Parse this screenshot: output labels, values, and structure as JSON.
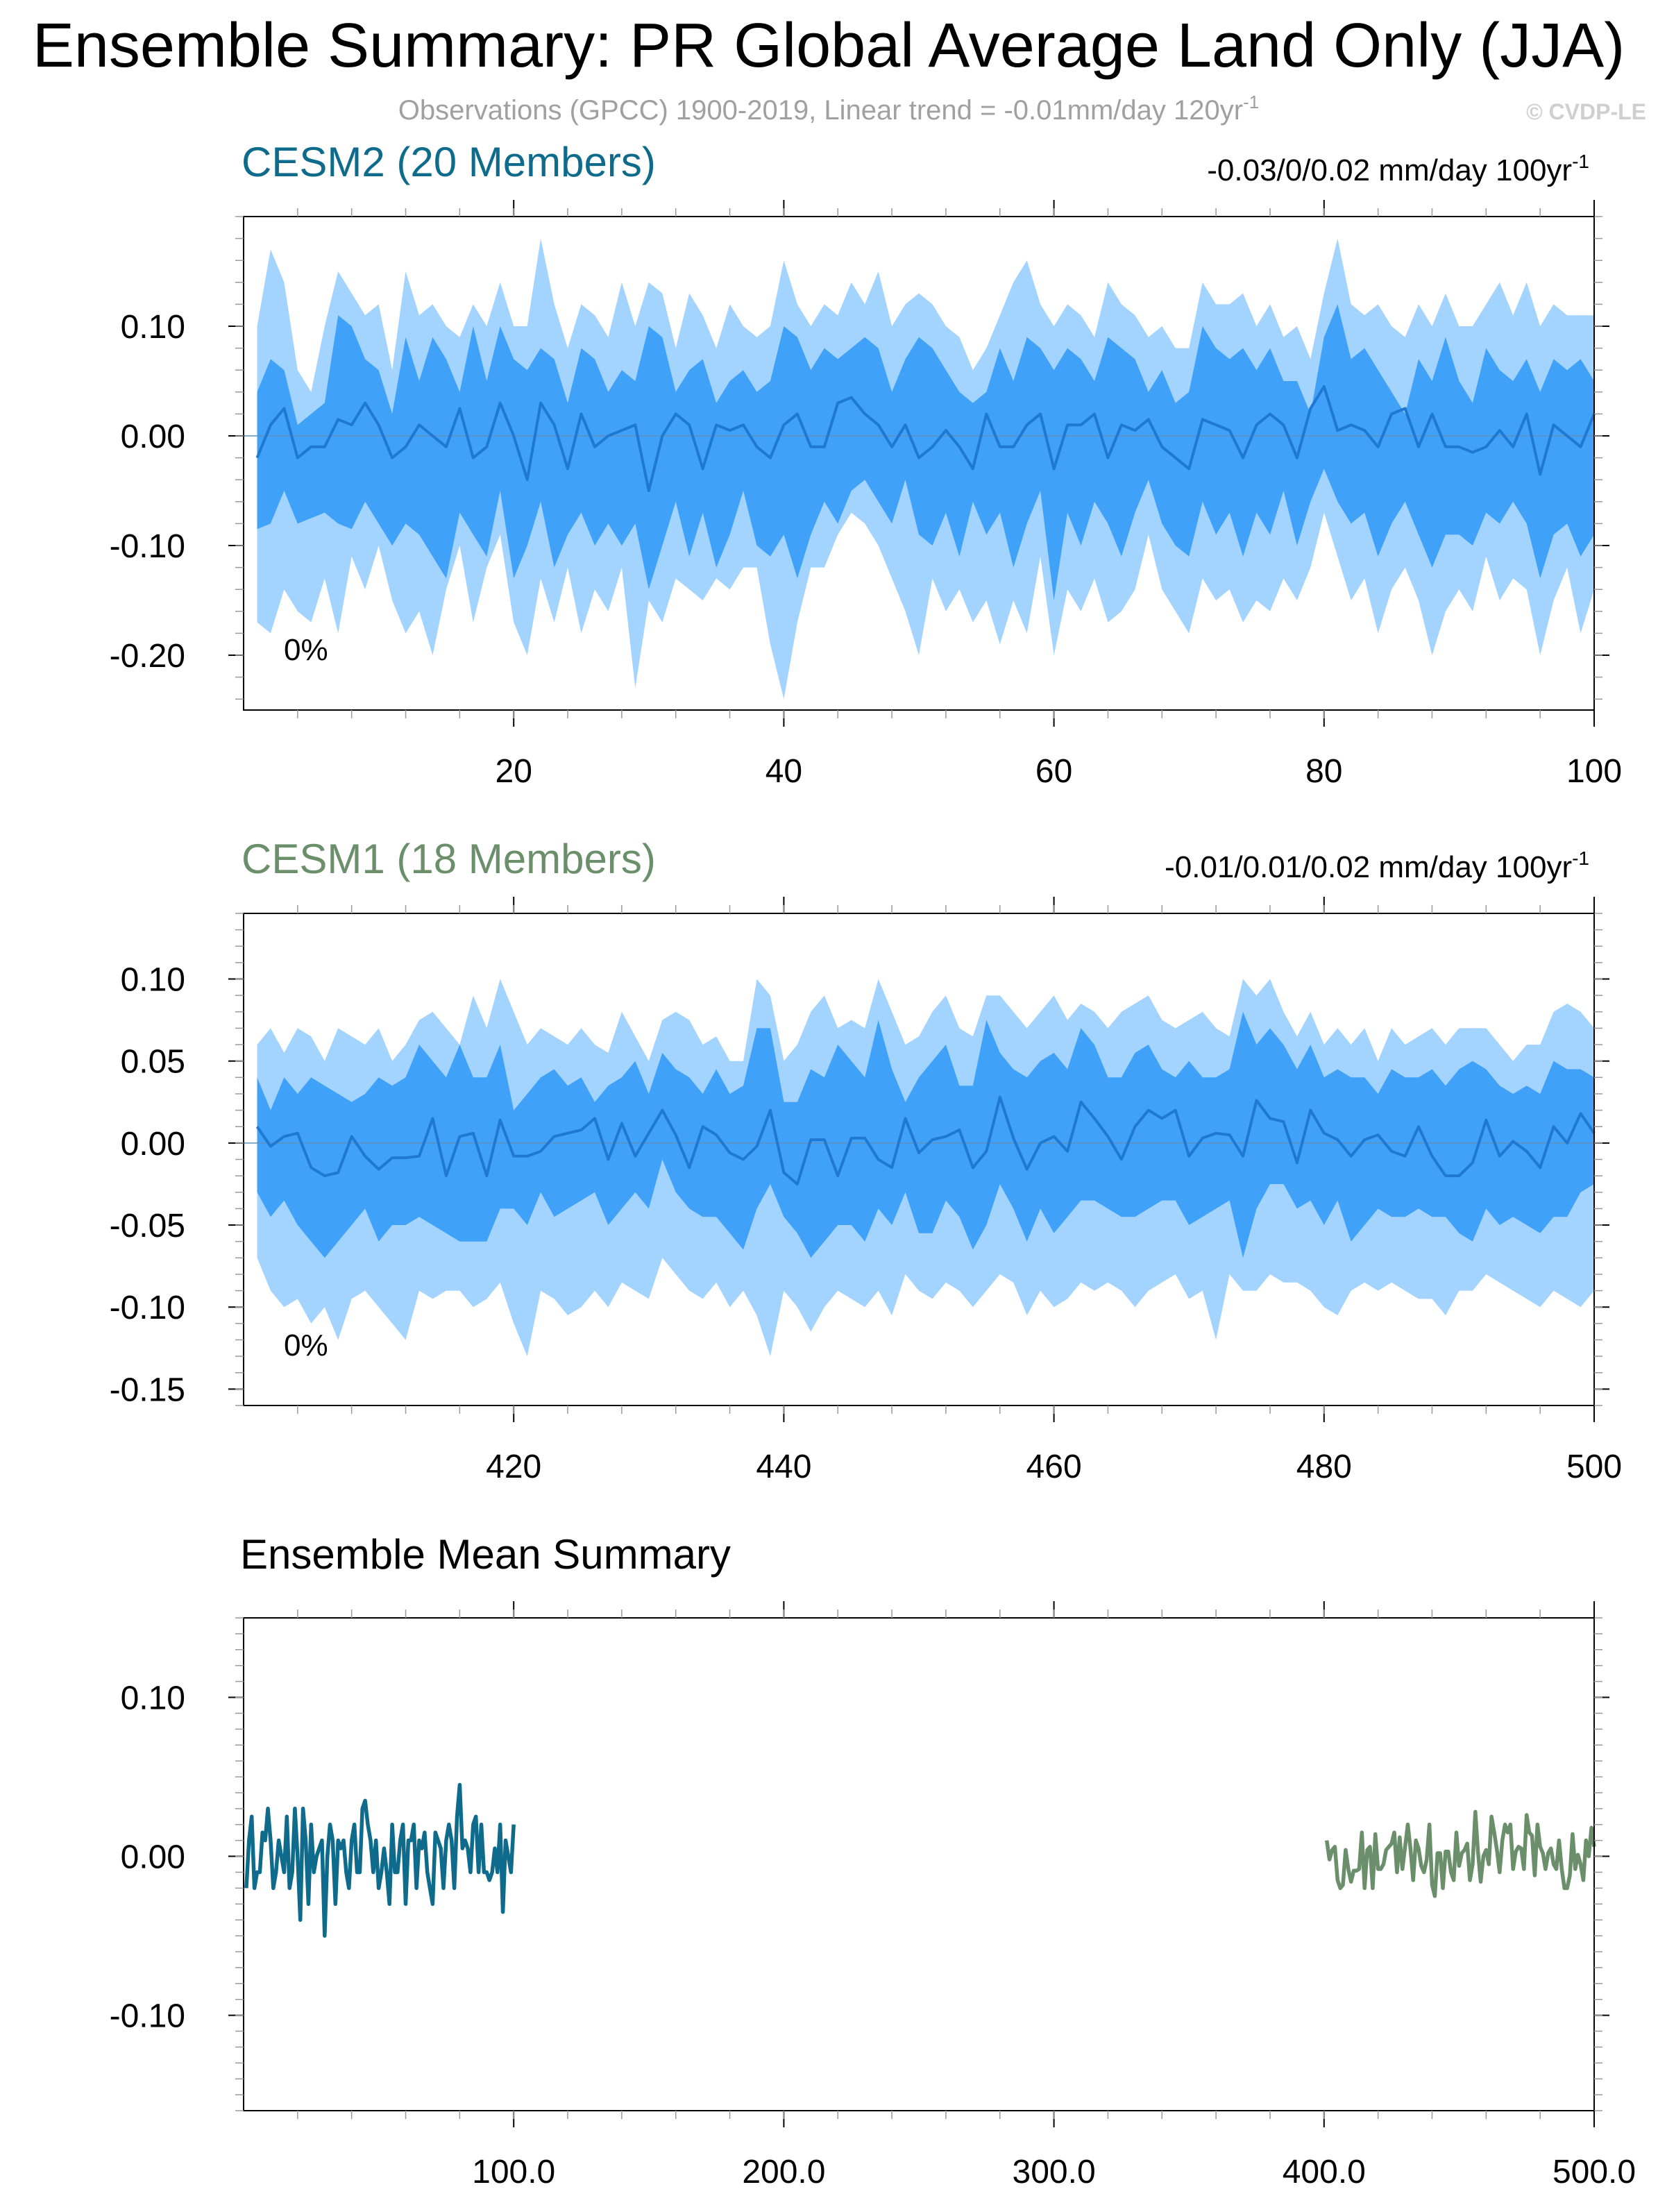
{
  "header": {
    "title": "Ensemble Summary: PR Global Average Land Only (JJA)",
    "subtitle": "Observations (GPCC) 1900-2019, Linear trend = -0.01mm/day 120yr",
    "subtitle_sup": "-1",
    "copyright": "© CVDP-LE"
  },
  "colors": {
    "cesm2": "#0e6b8c",
    "cesm1": "#6a8f6a",
    "band_outer": "#a3d3ff",
    "band_inner": "#3fa1f7",
    "mean_line": "#1f78d1",
    "axis": "#000000",
    "subtitle": "#a0a0a0"
  },
  "chart_data": [
    {
      "type": "area",
      "id": "cesm2",
      "title": "CESM2 (20 Members)",
      "trend_label": "-0.03/0/0.02 mm/day 100yr",
      "trend_sup": "-1",
      "percent_label": "0%",
      "xlim": [
        0,
        100
      ],
      "ylim": [
        -0.25,
        0.2
      ],
      "x_ticks": [
        20,
        40,
        60,
        80,
        100
      ],
      "y_ticks": [
        0.1,
        0.0,
        -0.1,
        -0.2
      ],
      "y_tick_labels": [
        "0.10",
        "0.00",
        "-0.10",
        "-0.20"
      ],
      "x": [
        1,
        2,
        3,
        4,
        5,
        6,
        7,
        8,
        9,
        10,
        11,
        12,
        13,
        14,
        15,
        16,
        17,
        18,
        19,
        20,
        21,
        22,
        23,
        24,
        25,
        26,
        27,
        28,
        29,
        30,
        31,
        32,
        33,
        34,
        35,
        36,
        37,
        38,
        39,
        40,
        41,
        42,
        43,
        44,
        45,
        46,
        47,
        48,
        49,
        50,
        51,
        52,
        53,
        54,
        55,
        56,
        57,
        58,
        59,
        60,
        61,
        62,
        63,
        64,
        65,
        66,
        67,
        68,
        69,
        70,
        71,
        72,
        73,
        74,
        75,
        76,
        77,
        78,
        79,
        80,
        81,
        82,
        83,
        84,
        85,
        86,
        87,
        88,
        89,
        90,
        91,
        92,
        93,
        94,
        95,
        96,
        97,
        98,
        99,
        100
      ],
      "mean": [
        -0.02,
        0.01,
        0.025,
        -0.02,
        -0.01,
        -0.01,
        0.015,
        0.01,
        0.03,
        0.01,
        -0.02,
        -0.01,
        0.01,
        0,
        -0.01,
        0.025,
        -0.02,
        -0.01,
        0.03,
        0,
        -0.04,
        0.03,
        0.01,
        -0.03,
        0.02,
        -0.01,
        0,
        0.005,
        0.01,
        -0.05,
        0,
        0.02,
        0.01,
        -0.03,
        0.01,
        0.005,
        0.01,
        -0.01,
        -0.02,
        0.01,
        0.02,
        -0.01,
        -0.01,
        0.03,
        0.035,
        0.02,
        0.01,
        -0.01,
        0.01,
        -0.02,
        -0.01,
        0.005,
        -0.01,
        -0.03,
        0.02,
        -0.01,
        -0.01,
        0.01,
        0.02,
        -0.03,
        0.01,
        0.01,
        0.02,
        -0.02,
        0.01,
        0.005,
        0.015,
        -0.01,
        -0.02,
        -0.03,
        0.015,
        0.01,
        0.005,
        -0.02,
        0.01,
        0.02,
        0.01,
        -0.02,
        0.025,
        0.045,
        0.005,
        0.01,
        0.005,
        -0.01,
        0.02,
        0.025,
        -0.01,
        0.02,
        -0.01,
        -0.01,
        -0.015,
        -0.01,
        0.005,
        -0.01,
        0.02,
        -0.035,
        0.01,
        0,
        -0.01,
        0.02
      ],
      "inner_upper": [
        0.04,
        0.07,
        0.06,
        0.01,
        0.02,
        0.03,
        0.11,
        0.1,
        0.07,
        0.06,
        0.02,
        0.09,
        0.05,
        0.09,
        0.07,
        0.04,
        0.1,
        0.05,
        0.1,
        0.07,
        0.06,
        0.08,
        0.07,
        0.03,
        0.08,
        0.07,
        0.04,
        0.06,
        0.05,
        0.1,
        0.09,
        0.04,
        0.06,
        0.07,
        0.03,
        0.05,
        0.06,
        0.04,
        0.05,
        0.1,
        0.09,
        0.06,
        0.08,
        0.07,
        0.08,
        0.09,
        0.08,
        0.04,
        0.07,
        0.09,
        0.08,
        0.06,
        0.04,
        0.03,
        0.04,
        0.08,
        0.05,
        0.09,
        0.08,
        0.06,
        0.08,
        0.07,
        0.05,
        0.09,
        0.08,
        0.07,
        0.04,
        0.06,
        0.03,
        0.04,
        0.1,
        0.08,
        0.07,
        0.08,
        0.06,
        0.08,
        0.05,
        0.05,
        0.02,
        0.09,
        0.12,
        0.07,
        0.08,
        0.06,
        0.04,
        0.02,
        0.07,
        0.05,
        0.09,
        0.05,
        0.03,
        0.08,
        0.06,
        0.05,
        0.07,
        0.04,
        0.07,
        0.06,
        0.07,
        0.05
      ],
      "inner_lower": [
        -0.085,
        -0.08,
        -0.05,
        -0.08,
        -0.075,
        -0.07,
        -0.08,
        -0.085,
        -0.06,
        -0.08,
        -0.1,
        -0.08,
        -0.09,
        -0.11,
        -0.13,
        -0.07,
        -0.09,
        -0.11,
        -0.05,
        -0.13,
        -0.1,
        -0.06,
        -0.12,
        -0.09,
        -0.07,
        -0.1,
        -0.08,
        -0.1,
        -0.08,
        -0.14,
        -0.1,
        -0.06,
        -0.11,
        -0.07,
        -0.12,
        -0.09,
        -0.05,
        -0.1,
        -0.11,
        -0.09,
        -0.13,
        -0.09,
        -0.06,
        -0.08,
        -0.05,
        -0.04,
        -0.06,
        -0.08,
        -0.04,
        -0.09,
        -0.1,
        -0.07,
        -0.11,
        -0.06,
        -0.09,
        -0.07,
        -0.12,
        -0.08,
        -0.05,
        -0.15,
        -0.07,
        -0.1,
        -0.06,
        -0.08,
        -0.11,
        -0.07,
        -0.04,
        -0.08,
        -0.1,
        -0.11,
        -0.06,
        -0.09,
        -0.07,
        -0.11,
        -0.07,
        -0.09,
        -0.05,
        -0.1,
        -0.06,
        -0.03,
        -0.06,
        -0.08,
        -0.07,
        -0.11,
        -0.08,
        -0.06,
        -0.09,
        -0.12,
        -0.09,
        -0.09,
        -0.1,
        -0.07,
        -0.08,
        -0.06,
        -0.08,
        -0.13,
        -0.09,
        -0.08,
        -0.11,
        -0.09
      ],
      "outer_upper": [
        0.1,
        0.17,
        0.14,
        0.06,
        0.04,
        0.1,
        0.15,
        0.13,
        0.11,
        0.12,
        0.06,
        0.15,
        0.11,
        0.12,
        0.1,
        0.09,
        0.12,
        0.1,
        0.14,
        0.1,
        0.1,
        0.18,
        0.12,
        0.08,
        0.12,
        0.11,
        0.09,
        0.14,
        0.1,
        0.14,
        0.13,
        0.08,
        0.13,
        0.11,
        0.08,
        0.12,
        0.1,
        0.09,
        0.1,
        0.16,
        0.12,
        0.1,
        0.12,
        0.11,
        0.14,
        0.12,
        0.15,
        0.1,
        0.12,
        0.13,
        0.12,
        0.1,
        0.09,
        0.06,
        0.08,
        0.11,
        0.14,
        0.16,
        0.12,
        0.1,
        0.12,
        0.11,
        0.09,
        0.14,
        0.12,
        0.11,
        0.09,
        0.1,
        0.08,
        0.08,
        0.14,
        0.12,
        0.12,
        0.13,
        0.1,
        0.12,
        0.09,
        0.1,
        0.07,
        0.13,
        0.18,
        0.12,
        0.11,
        0.12,
        0.1,
        0.09,
        0.12,
        0.1,
        0.13,
        0.1,
        0.1,
        0.12,
        0.14,
        0.11,
        0.14,
        0.1,
        0.12,
        0.11,
        0.11,
        0.11
      ],
      "outer_lower": [
        -0.17,
        -0.18,
        -0.14,
        -0.16,
        -0.17,
        -0.13,
        -0.18,
        -0.11,
        -0.14,
        -0.1,
        -0.15,
        -0.18,
        -0.16,
        -0.2,
        -0.14,
        -0.1,
        -0.17,
        -0.12,
        -0.09,
        -0.17,
        -0.2,
        -0.13,
        -0.17,
        -0.12,
        -0.18,
        -0.14,
        -0.16,
        -0.12,
        -0.23,
        -0.15,
        -0.17,
        -0.13,
        -0.14,
        -0.15,
        -0.13,
        -0.14,
        -0.12,
        -0.12,
        -0.19,
        -0.24,
        -0.17,
        -0.12,
        -0.12,
        -0.09,
        -0.07,
        -0.08,
        -0.1,
        -0.13,
        -0.16,
        -0.2,
        -0.13,
        -0.16,
        -0.14,
        -0.17,
        -0.15,
        -0.19,
        -0.15,
        -0.18,
        -0.11,
        -0.2,
        -0.14,
        -0.16,
        -0.13,
        -0.17,
        -0.16,
        -0.14,
        -0.09,
        -0.14,
        -0.16,
        -0.18,
        -0.13,
        -0.15,
        -0.14,
        -0.17,
        -0.15,
        -0.16,
        -0.13,
        -0.15,
        -0.12,
        -0.07,
        -0.11,
        -0.15,
        -0.13,
        -0.18,
        -0.14,
        -0.12,
        -0.15,
        -0.2,
        -0.16,
        -0.14,
        -0.16,
        -0.11,
        -0.15,
        -0.13,
        -0.14,
        -0.2,
        -0.15,
        -0.12,
        -0.18,
        -0.14
      ]
    },
    {
      "type": "area",
      "id": "cesm1",
      "title": "CESM1 (18 Members)",
      "trend_label": "-0.01/0.01/0.02 mm/day 100yr",
      "trend_sup": "-1",
      "percent_label": "0%",
      "xlim": [
        400,
        500
      ],
      "ylim": [
        -0.16,
        0.14
      ],
      "x_ticks": [
        420,
        440,
        460,
        480,
        500
      ],
      "y_ticks": [
        0.1,
        0.05,
        0.0,
        -0.05,
        -0.1,
        -0.15
      ],
      "y_tick_labels": [
        "0.10",
        "0.05",
        "0.00",
        "-0.05",
        "-0.10",
        "-0.15"
      ],
      "x": [
        401,
        402,
        403,
        404,
        405,
        406,
        407,
        408,
        409,
        410,
        411,
        412,
        413,
        414,
        415,
        416,
        417,
        418,
        419,
        420,
        421,
        422,
        423,
        424,
        425,
        426,
        427,
        428,
        429,
        430,
        431,
        432,
        433,
        434,
        435,
        436,
        437,
        438,
        439,
        440,
        441,
        442,
        443,
        444,
        445,
        446,
        447,
        448,
        449,
        450,
        451,
        452,
        453,
        454,
        455,
        456,
        457,
        458,
        459,
        460,
        461,
        462,
        463,
        464,
        465,
        466,
        467,
        468,
        469,
        470,
        471,
        472,
        473,
        474,
        475,
        476,
        477,
        478,
        479,
        480,
        481,
        482,
        483,
        484,
        485,
        486,
        487,
        488,
        489,
        490,
        491,
        492,
        493,
        494,
        495,
        496,
        497,
        498,
        499,
        500
      ],
      "mean": [
        0.01,
        -0.002,
        0.004,
        0.006,
        -0.015,
        -0.02,
        -0.018,
        0.004,
        -0.008,
        -0.016,
        -0.009,
        -0.009,
        -0.008,
        0.015,
        -0.02,
        0.004,
        0.006,
        -0.02,
        0.014,
        -0.008,
        -0.008,
        -0.005,
        0.004,
        0.006,
        0.008,
        0.015,
        -0.01,
        0.012,
        -0.008,
        0.006,
        0.02,
        0.005,
        -0.015,
        0.01,
        0.005,
        -0.006,
        -0.01,
        -0.002,
        0.02,
        -0.018,
        -0.025,
        0.002,
        0.002,
        -0.02,
        0.003,
        0.003,
        -0.01,
        -0.015,
        0.015,
        -0.006,
        0.002,
        0.004,
        0.008,
        -0.015,
        -0.005,
        0.028,
        0.003,
        -0.016,
        0,
        0.004,
        -0.005,
        0.025,
        0.015,
        0.004,
        -0.01,
        0.01,
        0.02,
        0.015,
        0.02,
        -0.008,
        0.003,
        0.006,
        0.005,
        -0.008,
        0.026,
        0.015,
        0.013,
        -0.012,
        0.02,
        0.006,
        0.002,
        -0.008,
        0.002,
        0.005,
        -0.005,
        -0.008,
        0.01,
        -0.008,
        -0.02,
        -0.02,
        -0.012,
        0.014,
        -0.008,
        0.001,
        -0.005,
        -0.015,
        0.01,
        0,
        0.018,
        0.006
      ],
      "inner_upper": [
        0.04,
        0.02,
        0.04,
        0.03,
        0.04,
        0.035,
        0.03,
        0.025,
        0.03,
        0.04,
        0.035,
        0.04,
        0.06,
        0.05,
        0.04,
        0.06,
        0.04,
        0.04,
        0.06,
        0.02,
        0.03,
        0.04,
        0.045,
        0.035,
        0.04,
        0.025,
        0.035,
        0.04,
        0.05,
        0.03,
        0.055,
        0.045,
        0.04,
        0.03,
        0.045,
        0.03,
        0.035,
        0.07,
        0.07,
        0.025,
        0.025,
        0.045,
        0.04,
        0.06,
        0.05,
        0.04,
        0.075,
        0.045,
        0.025,
        0.04,
        0.05,
        0.06,
        0.035,
        0.035,
        0.075,
        0.055,
        0.045,
        0.04,
        0.05,
        0.055,
        0.045,
        0.07,
        0.06,
        0.04,
        0.04,
        0.055,
        0.06,
        0.045,
        0.04,
        0.05,
        0.04,
        0.04,
        0.045,
        0.08,
        0.06,
        0.07,
        0.06,
        0.045,
        0.06,
        0.04,
        0.045,
        0.04,
        0.04,
        0.03,
        0.045,
        0.04,
        0.04,
        0.045,
        0.035,
        0.045,
        0.05,
        0.045,
        0.035,
        0.03,
        0.035,
        0.03,
        0.05,
        0.045,
        0.045,
        0.04
      ],
      "inner_lower": [
        -0.03,
        -0.045,
        -0.035,
        -0.05,
        -0.06,
        -0.07,
        -0.06,
        -0.05,
        -0.04,
        -0.06,
        -0.05,
        -0.05,
        -0.045,
        -0.05,
        -0.055,
        -0.06,
        -0.06,
        -0.06,
        -0.04,
        -0.04,
        -0.05,
        -0.03,
        -0.045,
        -0.04,
        -0.035,
        -0.03,
        -0.05,
        -0.04,
        -0.03,
        -0.04,
        -0.01,
        -0.03,
        -0.04,
        -0.045,
        -0.045,
        -0.055,
        -0.065,
        -0.04,
        -0.025,
        -0.045,
        -0.055,
        -0.07,
        -0.06,
        -0.05,
        -0.05,
        -0.06,
        -0.04,
        -0.05,
        -0.03,
        -0.055,
        -0.055,
        -0.035,
        -0.045,
        -0.065,
        -0.05,
        -0.025,
        -0.04,
        -0.06,
        -0.04,
        -0.055,
        -0.045,
        -0.035,
        -0.035,
        -0.04,
        -0.045,
        -0.045,
        -0.04,
        -0.035,
        -0.035,
        -0.05,
        -0.045,
        -0.04,
        -0.035,
        -0.07,
        -0.04,
        -0.025,
        -0.025,
        -0.04,
        -0.035,
        -0.05,
        -0.035,
        -0.06,
        -0.05,
        -0.04,
        -0.045,
        -0.045,
        -0.04,
        -0.045,
        -0.045,
        -0.055,
        -0.06,
        -0.04,
        -0.05,
        -0.045,
        -0.05,
        -0.055,
        -0.045,
        -0.045,
        -0.03,
        -0.025
      ],
      "outer_upper": [
        0.06,
        0.07,
        0.055,
        0.07,
        0.065,
        0.05,
        0.07,
        0.065,
        0.06,
        0.07,
        0.05,
        0.06,
        0.075,
        0.08,
        0.07,
        0.06,
        0.09,
        0.07,
        0.1,
        0.08,
        0.06,
        0.07,
        0.065,
        0.06,
        0.07,
        0.06,
        0.055,
        0.08,
        0.065,
        0.05,
        0.075,
        0.08,
        0.075,
        0.06,
        0.065,
        0.05,
        0.05,
        0.1,
        0.09,
        0.05,
        0.06,
        0.08,
        0.09,
        0.07,
        0.075,
        0.07,
        0.1,
        0.08,
        0.06,
        0.065,
        0.08,
        0.09,
        0.07,
        0.065,
        0.09,
        0.09,
        0.08,
        0.07,
        0.08,
        0.09,
        0.075,
        0.085,
        0.08,
        0.07,
        0.08,
        0.085,
        0.09,
        0.075,
        0.07,
        0.075,
        0.08,
        0.07,
        0.065,
        0.1,
        0.09,
        0.1,
        0.08,
        0.065,
        0.08,
        0.06,
        0.07,
        0.06,
        0.07,
        0.05,
        0.07,
        0.06,
        0.065,
        0.07,
        0.06,
        0.07,
        0.07,
        0.07,
        0.06,
        0.05,
        0.06,
        0.06,
        0.08,
        0.085,
        0.08,
        0.07
      ],
      "outer_lower": [
        -0.07,
        -0.09,
        -0.1,
        -0.095,
        -0.11,
        -0.1,
        -0.12,
        -0.095,
        -0.09,
        -0.1,
        -0.11,
        -0.12,
        -0.09,
        -0.095,
        -0.09,
        -0.09,
        -0.1,
        -0.095,
        -0.085,
        -0.11,
        -0.13,
        -0.09,
        -0.095,
        -0.105,
        -0.1,
        -0.09,
        -0.1,
        -0.085,
        -0.09,
        -0.095,
        -0.07,
        -0.08,
        -0.09,
        -0.095,
        -0.085,
        -0.1,
        -0.09,
        -0.105,
        -0.13,
        -0.09,
        -0.1,
        -0.115,
        -0.1,
        -0.09,
        -0.095,
        -0.1,
        -0.09,
        -0.105,
        -0.08,
        -0.09,
        -0.095,
        -0.085,
        -0.09,
        -0.1,
        -0.09,
        -0.08,
        -0.085,
        -0.105,
        -0.09,
        -0.1,
        -0.095,
        -0.085,
        -0.09,
        -0.085,
        -0.09,
        -0.1,
        -0.09,
        -0.085,
        -0.08,
        -0.095,
        -0.09,
        -0.12,
        -0.08,
        -0.09,
        -0.09,
        -0.08,
        -0.085,
        -0.085,
        -0.09,
        -0.1,
        -0.105,
        -0.09,
        -0.085,
        -0.09,
        -0.085,
        -0.09,
        -0.095,
        -0.095,
        -0.105,
        -0.09,
        -0.09,
        -0.08,
        -0.085,
        -0.09,
        -0.095,
        -0.1,
        -0.09,
        -0.095,
        -0.1,
        -0.09
      ]
    },
    {
      "type": "line",
      "id": "summary",
      "title": "Ensemble Mean Summary",
      "xlim": [
        0,
        500
      ],
      "ylim": [
        -0.16,
        0.15
      ],
      "x_ticks": [
        100,
        200,
        300,
        400,
        500
      ],
      "x_tick_labels": [
        "100.0",
        "200.0",
        "300.0",
        "400.0",
        "500.0"
      ],
      "y_ticks": [
        0.1,
        0.0,
        -0.1
      ],
      "y_tick_labels": [
        "0.10",
        "0.00",
        "-0.10"
      ],
      "series": [
        {
          "ref": "cesm2",
          "x_start": 1,
          "color_key": "cesm2"
        },
        {
          "ref": "cesm1",
          "x_start": 401,
          "color_key": "cesm1"
        }
      ]
    }
  ]
}
